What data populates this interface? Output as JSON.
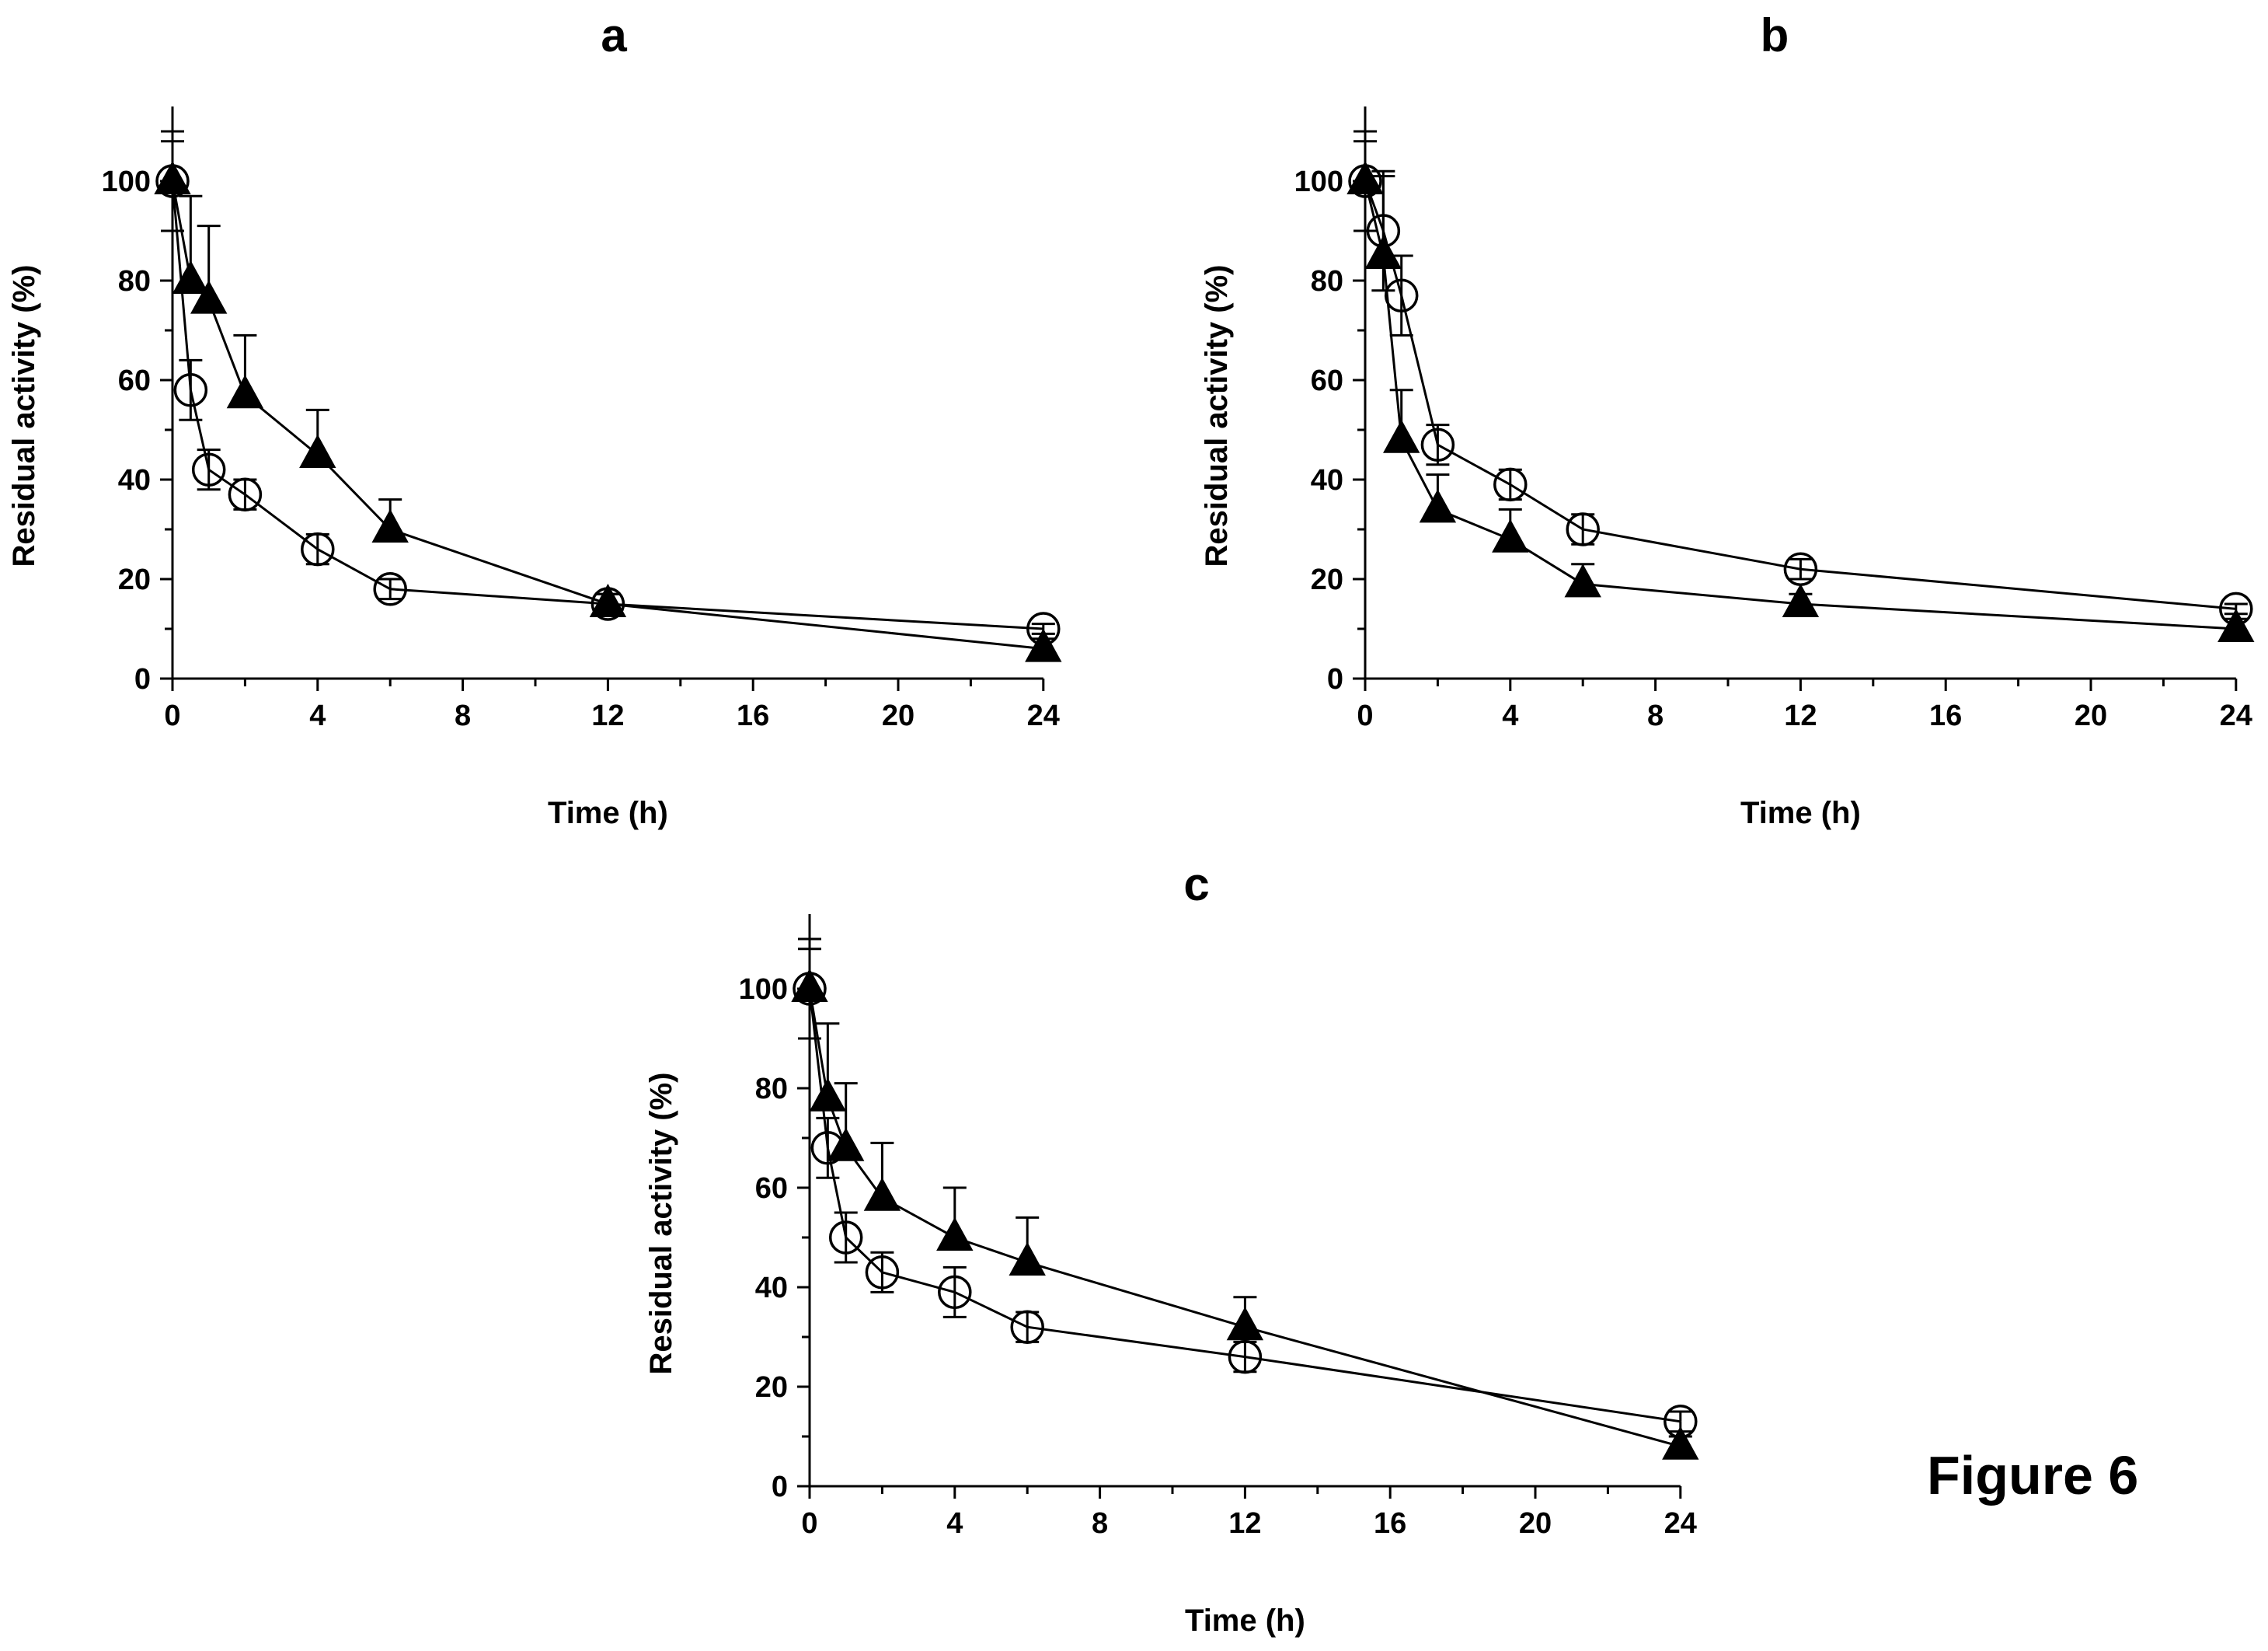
{
  "figure": {
    "caption": "Figure 6"
  },
  "chart_data": [
    {
      "type": "line",
      "panel": "a",
      "xlabel": "Time (h)",
      "ylabel": "Residual activity (%)",
      "xlim": [
        0,
        24
      ],
      "ylim": [
        0,
        115
      ],
      "xticks": [
        0,
        4,
        8,
        12,
        16,
        20,
        24
      ],
      "yticks": [
        0,
        20,
        40,
        60,
        80,
        100
      ],
      "grid": false,
      "legend": "none",
      "series": [
        {
          "marker": "open-circle",
          "x": [
            0,
            0.5,
            1,
            2,
            4,
            6,
            12,
            24
          ],
          "y": [
            100,
            58,
            42,
            37,
            26,
            18,
            15,
            10
          ],
          "err": [
            10,
            6,
            4,
            3,
            3,
            2,
            2,
            1
          ]
        },
        {
          "marker": "filled-triangle",
          "x": [
            0,
            0.5,
            1,
            2,
            4,
            6,
            12,
            24
          ],
          "y": [
            100,
            80,
            76,
            57,
            45,
            30,
            15,
            6
          ],
          "err": [
            8,
            17,
            15,
            12,
            9,
            6,
            2,
            2
          ]
        }
      ]
    },
    {
      "type": "line",
      "panel": "b",
      "xlabel": "Time (h)",
      "ylabel": "Residual activity (%)",
      "xlim": [
        0,
        24
      ],
      "ylim": [
        0,
        115
      ],
      "xticks": [
        0,
        4,
        8,
        12,
        16,
        20,
        24
      ],
      "yticks": [
        0,
        20,
        40,
        60,
        80,
        100
      ],
      "grid": false,
      "legend": "none",
      "series": [
        {
          "marker": "open-circle",
          "x": [
            0,
            0.5,
            1,
            2,
            4,
            6,
            12,
            24
          ],
          "y": [
            100,
            90,
            77,
            47,
            39,
            30,
            22,
            14
          ],
          "err": [
            10,
            12,
            8,
            4,
            3,
            3,
            2,
            1
          ]
        },
        {
          "marker": "filled-triangle",
          "x": [
            0,
            0.5,
            1,
            2,
            4,
            6,
            12,
            24
          ],
          "y": [
            100,
            85,
            48,
            34,
            28,
            19,
            15,
            10
          ],
          "err": [
            8,
            16,
            10,
            7,
            6,
            4,
            2,
            2
          ]
        }
      ]
    },
    {
      "type": "line",
      "panel": "c",
      "xlabel": "Time (h)",
      "ylabel": "Residual activity (%)",
      "xlim": [
        0,
        24
      ],
      "ylim": [
        0,
        115
      ],
      "xticks": [
        0,
        4,
        8,
        12,
        16,
        20,
        24
      ],
      "yticks": [
        0,
        20,
        40,
        60,
        80,
        100
      ],
      "grid": false,
      "legend": "none",
      "series": [
        {
          "marker": "open-circle",
          "x": [
            0,
            0.5,
            1,
            2,
            4,
            6,
            12,
            24
          ],
          "y": [
            100,
            68,
            50,
            43,
            39,
            32,
            26,
            13
          ],
          "err": [
            10,
            6,
            5,
            4,
            5,
            3,
            3,
            2
          ]
        },
        {
          "marker": "filled-triangle",
          "x": [
            0,
            0.5,
            1,
            2,
            4,
            6,
            12,
            24
          ],
          "y": [
            100,
            78,
            68,
            58,
            50,
            45,
            32,
            8
          ],
          "err": [
            8,
            15,
            13,
            11,
            10,
            9,
            6,
            2
          ]
        }
      ]
    }
  ]
}
